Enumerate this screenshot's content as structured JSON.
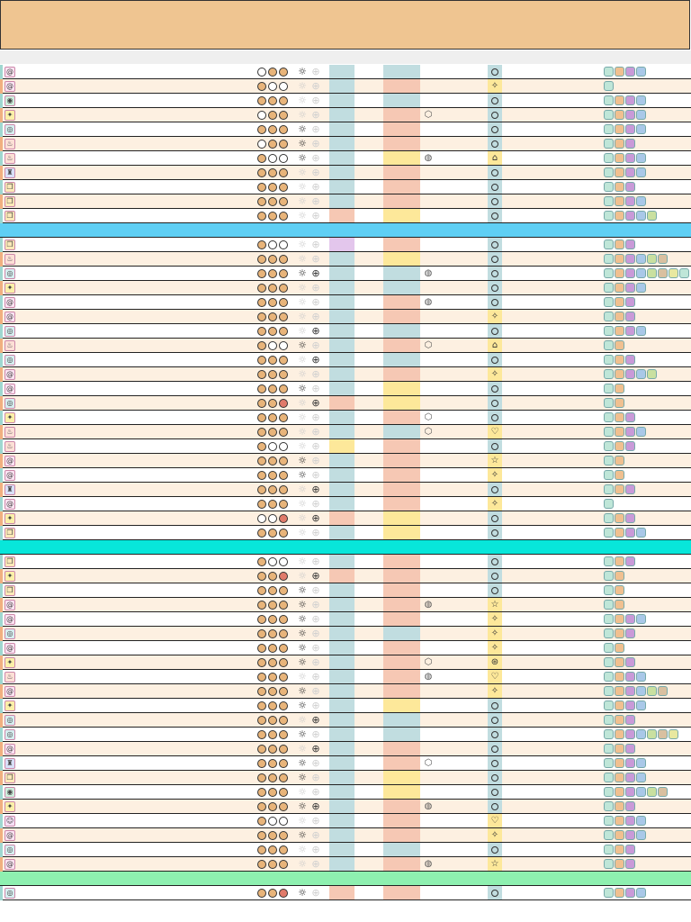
{
  "colors": {
    "header": "#efc591",
    "subbar": "#efefef",
    "row_white": "#ffffff",
    "row_cream": "#fdf0e1",
    "dot_filled": "#e8b47a",
    "dot_empty": "#ffffff",
    "dot_red": "#e07a6a",
    "blue_block": "#c1dde0",
    "pink_block": "#f6c8b4",
    "yellow_block": "#fde89a",
    "purple_block": "#e3c6ec",
    "section_blue": "#5fcff4",
    "section_cyan": "#08e6da",
    "section_green": "#8ef0b0",
    "badge_colors": [
      "#bfe6d8",
      "#f0c090",
      "#c99ad8",
      "#a9c8e8",
      "#c9e0a0",
      "#d9c0a0",
      "#e8e8a0"
    ]
  },
  "rows": [
    {
      "y": 72,
      "bg": "white",
      "icon": "swirl-icon",
      "dots": [
        "e",
        "f",
        "f"
      ],
      "sun": 1,
      "wheel": 0,
      "b1": "blue",
      "b2": "blue",
      "shape": "",
      "mark": "o",
      "badges": 4
    },
    {
      "y": 88,
      "bg": "cream",
      "icon": "swirl-icon",
      "dots": [
        "f",
        "e",
        "e"
      ],
      "sun": 0,
      "wheel": 0,
      "b1": "blue",
      "b2": "pink",
      "shape": "",
      "mark": "star4",
      "badges": 1
    },
    {
      "y": 104,
      "bg": "white",
      "icon": "shield-icon",
      "dots": [
        "f",
        "f",
        "f"
      ],
      "sun": 0,
      "wheel": 0,
      "b1": "blue",
      "b2": "blue",
      "shape": "",
      "mark": "o",
      "badges": 4
    },
    {
      "y": 120,
      "bg": "cream",
      "icon": "sparkle-icon",
      "dots": [
        "e",
        "f",
        "f"
      ],
      "sun": 0,
      "wheel": 0,
      "b1": "blue",
      "b2": "pink",
      "shape": "cube",
      "mark": "o",
      "badges": 4
    },
    {
      "y": 136,
      "bg": "white",
      "icon": "eye-icon",
      "dots": [
        "f",
        "f",
        "f"
      ],
      "sun": 1,
      "wheel": 0,
      "b1": "blue",
      "b2": "pink",
      "shape": "",
      "mark": "o",
      "badges": 4
    },
    {
      "y": 152,
      "bg": "cream",
      "icon": "flame-icon",
      "dots": [
        "e",
        "f",
        "f"
      ],
      "sun": 1,
      "wheel": 0,
      "b1": "blue",
      "b2": "pink",
      "shape": "",
      "mark": "o",
      "badges": 3
    },
    {
      "y": 168,
      "bg": "white",
      "icon": "flame-icon",
      "dots": [
        "f",
        "e",
        "e"
      ],
      "sun": 1,
      "wheel": 0,
      "b1": "blue",
      "b2": "yellow",
      "shape": "globe",
      "mark": "boot",
      "badges": 4
    },
    {
      "y": 184,
      "bg": "cream",
      "icon": "tower-icon",
      "dots": [
        "f",
        "f",
        "f"
      ],
      "sun": 0,
      "wheel": 0,
      "b1": "blue",
      "b2": "pink",
      "shape": "",
      "mark": "o",
      "badges": 4
    },
    {
      "y": 200,
      "bg": "white",
      "icon": "scroll-icon",
      "dots": [
        "f",
        "f",
        "f"
      ],
      "sun": 0,
      "wheel": 0,
      "b1": "blue",
      "b2": "pink",
      "shape": "",
      "mark": "o",
      "badges": 3
    },
    {
      "y": 216,
      "bg": "cream",
      "icon": "scroll-icon",
      "dots": [
        "f",
        "f",
        "f"
      ],
      "sun": 0,
      "wheel": 0,
      "b1": "blue",
      "b2": "pink",
      "shape": "",
      "mark": "o",
      "badges": 4
    },
    {
      "y": 232,
      "bg": "white",
      "icon": "scroll-icon",
      "dots": [
        "f",
        "f",
        "f"
      ],
      "sun": 0,
      "wheel": 0,
      "b1": "pink",
      "b2": "yellow",
      "shape": "",
      "mark": "o",
      "badges": 5
    },
    {
      "sep": "section_blue",
      "y": 248
    },
    {
      "y": 264,
      "bg": "white",
      "icon": "scroll-icon",
      "dots": [
        "f",
        "e",
        "e"
      ],
      "sun": 0,
      "wheel": 0,
      "b1": "purple",
      "b2": "pink",
      "shape": "",
      "mark": "o",
      "badges": 3
    },
    {
      "y": 280,
      "bg": "cream",
      "icon": "flame-icon",
      "dots": [
        "f",
        "f",
        "f"
      ],
      "sun": 0,
      "wheel": 0,
      "b1": "blue",
      "b2": "yellow",
      "shape": "",
      "mark": "o",
      "badges": 6
    },
    {
      "y": 296,
      "bg": "white",
      "icon": "eye-icon",
      "dots": [
        "f",
        "f",
        "f"
      ],
      "sun": 1,
      "wheel": 1,
      "b1": "blue",
      "b2": "blue",
      "shape": "globe",
      "mark": "o",
      "badges": 8
    },
    {
      "y": 312,
      "bg": "cream",
      "icon": "sparkle-icon",
      "dots": [
        "f",
        "f",
        "f"
      ],
      "sun": 0,
      "wheel": 0,
      "b1": "blue",
      "b2": "blue",
      "shape": "",
      "mark": "o",
      "badges": 4
    },
    {
      "y": 328,
      "bg": "white",
      "icon": "swirl-icon",
      "dots": [
        "f",
        "f",
        "f"
      ],
      "sun": 0,
      "wheel": 0,
      "b1": "blue",
      "b2": "pink",
      "shape": "globe",
      "mark": "o",
      "badges": 3
    },
    {
      "y": 344,
      "bg": "cream",
      "icon": "swirl-icon",
      "dots": [
        "f",
        "f",
        "f"
      ],
      "sun": 0,
      "wheel": 0,
      "b1": "blue",
      "b2": "pink",
      "shape": "",
      "mark": "star4",
      "badges": 3
    },
    {
      "y": 360,
      "bg": "white",
      "icon": "eye-icon",
      "dots": [
        "f",
        "f",
        "f"
      ],
      "sun": 0,
      "wheel": 1,
      "b1": "blue",
      "b2": "blue",
      "shape": "",
      "mark": "o",
      "badges": 4
    },
    {
      "y": 376,
      "bg": "cream",
      "icon": "flame-icon",
      "dots": [
        "f",
        "e",
        "e"
      ],
      "sun": 1,
      "wheel": 0,
      "b1": "blue",
      "b2": "pink",
      "shape": "cube",
      "mark": "boot",
      "badges": 2
    },
    {
      "y": 392,
      "bg": "white",
      "icon": "eye-icon",
      "dots": [
        "f",
        "f",
        "f"
      ],
      "sun": 0,
      "wheel": 1,
      "b1": "blue",
      "b2": "blue",
      "shape": "",
      "mark": "o",
      "badges": 3
    },
    {
      "y": 408,
      "bg": "cream",
      "icon": "swirl-icon",
      "dots": [
        "f",
        "f",
        "f"
      ],
      "sun": 0,
      "wheel": 0,
      "b1": "blue",
      "b2": "pink",
      "shape": "",
      "mark": "star4",
      "badges": 5
    },
    {
      "y": 424,
      "bg": "white",
      "icon": "swirl-icon",
      "dots": [
        "f",
        "f",
        "f"
      ],
      "sun": 1,
      "wheel": 0,
      "b1": "blue",
      "b2": "yellow",
      "shape": "",
      "mark": "o",
      "badges": 2
    },
    {
      "y": 440,
      "bg": "cream",
      "icon": "eye-icon",
      "dots": [
        "f",
        "f",
        "r"
      ],
      "sun": 0,
      "wheel": 1,
      "b1": "pink",
      "b2": "yellow",
      "shape": "",
      "mark": "o",
      "badges": 2
    },
    {
      "y": 456,
      "bg": "white",
      "icon": "sparkle-icon",
      "dots": [
        "f",
        "f",
        "f"
      ],
      "sun": 0,
      "wheel": 0,
      "b1": "blue",
      "b2": "pink",
      "shape": "cube",
      "mark": "o",
      "badges": 3
    },
    {
      "y": 472,
      "bg": "cream",
      "icon": "flame-icon",
      "dots": [
        "f",
        "f",
        "f"
      ],
      "sun": 0,
      "wheel": 0,
      "b1": "blue",
      "b2": "blue",
      "shape": "cube",
      "mark": "heart",
      "badges": 4
    },
    {
      "y": 488,
      "bg": "white",
      "icon": "flame-icon",
      "dots": [
        "f",
        "e",
        "e"
      ],
      "sun": 0,
      "wheel": 0,
      "b1": "yellow",
      "b2": "pink",
      "shape": "",
      "mark": "o",
      "badges": 3
    },
    {
      "y": 504,
      "bg": "cream",
      "icon": "swirl-icon",
      "dots": [
        "f",
        "f",
        "f"
      ],
      "sun": 1,
      "wheel": 0,
      "b1": "blue",
      "b2": "pink",
      "shape": "",
      "mark": "star5",
      "badges": 2
    },
    {
      "y": 520,
      "bg": "white",
      "icon": "swirl-icon",
      "dots": [
        "f",
        "f",
        "f"
      ],
      "sun": 1,
      "wheel": 0,
      "b1": "blue",
      "b2": "pink",
      "shape": "",
      "mark": "star4",
      "badges": 2
    },
    {
      "y": 536,
      "bg": "cream",
      "icon": "tower-icon",
      "dots": [
        "f",
        "f",
        "f"
      ],
      "sun": 0,
      "wheel": 1,
      "b1": "blue",
      "b2": "pink",
      "shape": "",
      "mark": "o",
      "badges": 3
    },
    {
      "y": 552,
      "bg": "white",
      "icon": "swirl-icon",
      "dots": [
        "f",
        "f",
        "f"
      ],
      "sun": 0,
      "wheel": 0,
      "b1": "blue",
      "b2": "pink",
      "shape": "",
      "mark": "star4",
      "badges": 1
    },
    {
      "y": 568,
      "bg": "cream",
      "icon": "sparkle-icon",
      "dots": [
        "e",
        "e",
        "r"
      ],
      "sun": 0,
      "wheel": 1,
      "b1": "pink",
      "b2": "yellow",
      "shape": "",
      "mark": "o",
      "badges": 3
    },
    {
      "y": 584,
      "bg": "white",
      "icon": "scroll-icon",
      "dots": [
        "f",
        "f",
        "f"
      ],
      "sun": 0,
      "wheel": 0,
      "b1": "blue",
      "b2": "yellow",
      "shape": "",
      "mark": "o",
      "badges": 4
    },
    {
      "sep": "section_cyan",
      "y": 600
    },
    {
      "y": 616,
      "bg": "white",
      "icon": "scroll-icon",
      "dots": [
        "f",
        "e",
        "e"
      ],
      "sun": 0,
      "wheel": 0,
      "b1": "blue",
      "b2": "pink",
      "shape": "",
      "mark": "o",
      "badges": 3
    },
    {
      "y": 632,
      "bg": "cream",
      "icon": "sparkle-icon",
      "dots": [
        "f",
        "f",
        "r"
      ],
      "sun": 0,
      "wheel": 1,
      "b1": "pink",
      "b2": "pink",
      "shape": "",
      "mark": "o",
      "badges": 2
    },
    {
      "y": 648,
      "bg": "white",
      "icon": "scroll-icon",
      "dots": [
        "f",
        "f",
        "f"
      ],
      "sun": 1,
      "wheel": 0,
      "b1": "blue",
      "b2": "pink",
      "shape": "",
      "mark": "o",
      "badges": 2
    },
    {
      "y": 664,
      "bg": "cream",
      "icon": "swirl-icon",
      "dots": [
        "f",
        "f",
        "f"
      ],
      "sun": 1,
      "wheel": 0,
      "b1": "blue",
      "b2": "pink",
      "shape": "globe",
      "mark": "star5",
      "badges": 2
    },
    {
      "y": 680,
      "bg": "white",
      "icon": "swirl-icon",
      "dots": [
        "f",
        "f",
        "f"
      ],
      "sun": 1,
      "wheel": 0,
      "b1": "blue",
      "b2": "pink",
      "shape": "",
      "mark": "star4",
      "badges": 4
    },
    {
      "y": 696,
      "bg": "cream",
      "icon": "eye-icon",
      "dots": [
        "f",
        "f",
        "f"
      ],
      "sun": 1,
      "wheel": 0,
      "b1": "blue",
      "b2": "blue",
      "shape": "",
      "mark": "star4",
      "badges": 3
    },
    {
      "y": 712,
      "bg": "white",
      "icon": "swirl-icon",
      "dots": [
        "f",
        "f",
        "f"
      ],
      "sun": 1,
      "wheel": 0,
      "b1": "blue",
      "b2": "pink",
      "shape": "",
      "mark": "star4",
      "badges": 2
    },
    {
      "y": 728,
      "bg": "cream",
      "icon": "sparkle-icon",
      "dots": [
        "f",
        "f",
        "f"
      ],
      "sun": 1,
      "wheel": 0,
      "b1": "blue",
      "b2": "pink",
      "shape": "cube",
      "mark": "brain",
      "badges": 3
    },
    {
      "y": 744,
      "bg": "white",
      "icon": "flame-icon",
      "dots": [
        "f",
        "f",
        "f"
      ],
      "sun": 0,
      "wheel": 0,
      "b1": "blue",
      "b2": "pink",
      "shape": "globe",
      "mark": "heart",
      "badges": 4
    },
    {
      "y": 760,
      "bg": "cream",
      "icon": "swirl-icon",
      "dots": [
        "f",
        "f",
        "f"
      ],
      "sun": 1,
      "wheel": 0,
      "b1": "blue",
      "b2": "pink",
      "shape": "",
      "mark": "star4",
      "badges": 6
    },
    {
      "y": 776,
      "bg": "white",
      "icon": "sparkle-icon",
      "dots": [
        "f",
        "f",
        "f"
      ],
      "sun": 1,
      "wheel": 0,
      "b1": "blue",
      "b2": "yellow",
      "shape": "",
      "mark": "o",
      "badges": 4
    },
    {
      "y": 792,
      "bg": "cream",
      "icon": "eye-icon",
      "dots": [
        "f",
        "f",
        "f"
      ],
      "sun": 0,
      "wheel": 1,
      "b1": "blue",
      "b2": "blue",
      "shape": "",
      "mark": "o",
      "badges": 3
    },
    {
      "y": 808,
      "bg": "white",
      "icon": "eye-icon",
      "dots": [
        "f",
        "f",
        "f"
      ],
      "sun": 1,
      "wheel": 0,
      "b1": "blue",
      "b2": "blue",
      "shape": "",
      "mark": "o",
      "badges": 7
    },
    {
      "y": 824,
      "bg": "cream",
      "icon": "swirl-icon",
      "dots": [
        "f",
        "f",
        "f"
      ],
      "sun": 0,
      "wheel": 1,
      "b1": "blue",
      "b2": "pink",
      "shape": "",
      "mark": "o",
      "badges": 3
    },
    {
      "y": 840,
      "bg": "white",
      "icon": "tower-icon",
      "dots": [
        "f",
        "f",
        "f"
      ],
      "sun": 1,
      "wheel": 0,
      "b1": "blue",
      "b2": "pink",
      "shape": "cube",
      "mark": "o",
      "badges": 4
    },
    {
      "y": 856,
      "bg": "cream",
      "icon": "scroll-icon",
      "dots": [
        "f",
        "f",
        "f"
      ],
      "sun": 1,
      "wheel": 0,
      "b1": "blue",
      "b2": "yellow",
      "shape": "",
      "mark": "o",
      "badges": 4
    },
    {
      "y": 872,
      "bg": "white",
      "icon": "shield-icon",
      "dots": [
        "f",
        "f",
        "f"
      ],
      "sun": 0,
      "wheel": 0,
      "b1": "blue",
      "b2": "yellow",
      "shape": "",
      "mark": "o",
      "badges": 6
    },
    {
      "y": 888,
      "bg": "cream",
      "icon": "sparkle-icon",
      "dots": [
        "f",
        "f",
        "f"
      ],
      "sun": 1,
      "wheel": 1,
      "b1": "blue",
      "b2": "pink",
      "shape": "globe",
      "mark": "o",
      "badges": 3
    },
    {
      "y": 904,
      "bg": "white",
      "icon": "face-icon",
      "dots": [
        "f",
        "e",
        "e"
      ],
      "sun": 0,
      "wheel": 0,
      "b1": "blue",
      "b2": "pink",
      "shape": "",
      "mark": "heart",
      "badges": 4
    },
    {
      "y": 920,
      "bg": "cream",
      "icon": "swirl-icon",
      "dots": [
        "f",
        "f",
        "f"
      ],
      "sun": 1,
      "wheel": 0,
      "b1": "blue",
      "b2": "pink",
      "shape": "",
      "mark": "star4",
      "badges": 4
    },
    {
      "y": 936,
      "bg": "white",
      "icon": "eye-icon",
      "dots": [
        "f",
        "f",
        "f"
      ],
      "sun": 0,
      "wheel": 0,
      "b1": "blue",
      "b2": "blue",
      "shape": "",
      "mark": "o",
      "badges": 3
    },
    {
      "y": 952,
      "bg": "cream",
      "icon": "swirl-icon",
      "dots": [
        "f",
        "f",
        "f"
      ],
      "sun": 0,
      "wheel": 0,
      "b1": "blue",
      "b2": "pink",
      "shape": "globe",
      "mark": "star5",
      "badges": 3
    },
    {
      "sep": "section_green",
      "y": 968
    },
    {
      "y": 984,
      "bg": "white",
      "icon": "eye-icon",
      "dots": [
        "f",
        "f",
        "r"
      ],
      "sun": 1,
      "wheel": 0,
      "b1": "pink",
      "b2": "pink",
      "shape": "",
      "mark": "o",
      "badges": 4
    }
  ]
}
